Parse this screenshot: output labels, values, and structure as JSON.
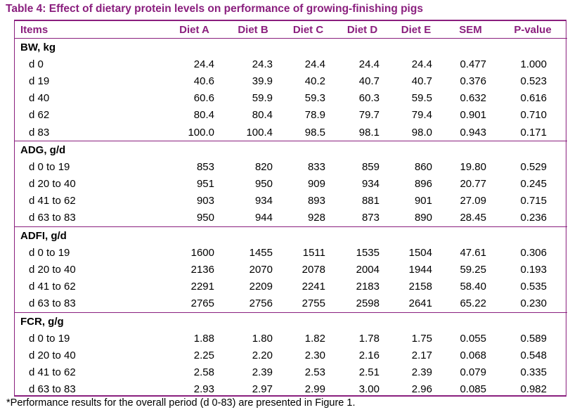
{
  "title": "Table 4:  Effect of dietary protein levels on performance of growing-finishing pigs",
  "columns": [
    "Items",
    "Diet A",
    "Diet B",
    "Diet C",
    "Diet D",
    "Diet E",
    "SEM",
    "P-value"
  ],
  "groups": [
    {
      "name": "BW, kg",
      "rows": [
        {
          "label": "d 0",
          "values": [
            "24.4",
            "24.3",
            "24.4",
            "24.4",
            "24.4",
            "0.477",
            "1.000"
          ]
        },
        {
          "label": "d 19",
          "values": [
            "40.6",
            "39.9",
            "40.2",
            "40.7",
            "40.7",
            "0.376",
            "0.523"
          ]
        },
        {
          "label": "d 40",
          "values": [
            "60.6",
            "59.9",
            "59.3",
            "60.3",
            "59.5",
            "0.632",
            "0.616"
          ]
        },
        {
          "label": "d 62",
          "values": [
            "80.4",
            "80.4",
            "78.9",
            "79.7",
            "79.4",
            "0.901",
            "0.710"
          ]
        },
        {
          "label": "d 83",
          "values": [
            "100.0",
            "100.4",
            "98.5",
            "98.1",
            "98.0",
            "0.943",
            "0.171"
          ]
        }
      ]
    },
    {
      "name": "ADG, g/d",
      "rows": [
        {
          "label": "d 0 to 19",
          "values": [
            "853",
            "820",
            "833",
            "859",
            "860",
            "19.80",
            "0.529"
          ]
        },
        {
          "label": "d 20 to 40",
          "values": [
            "951",
            "950",
            "909",
            "934",
            "896",
            "20.77",
            "0.245"
          ]
        },
        {
          "label": "d 41 to 62",
          "values": [
            "903",
            "934",
            "893",
            "881",
            "901",
            "27.09",
            "0.715"
          ]
        },
        {
          "label": "d 63 to 83",
          "values": [
            "950",
            "944",
            "928",
            "873",
            "890",
            "28.45",
            "0.236"
          ]
        }
      ]
    },
    {
      "name": "ADFI, g/d",
      "rows": [
        {
          "label": "d 0 to 19",
          "values": [
            "1600",
            "1455",
            "1511",
            "1535",
            "1504",
            "47.61",
            "0.306"
          ]
        },
        {
          "label": "d 20 to 40",
          "values": [
            "2136",
            "2070",
            "2078",
            "2004",
            "1944",
            "59.25",
            "0.193"
          ]
        },
        {
          "label": "d 41 to 62",
          "values": [
            "2291",
            "2209",
            "2241",
            "2183",
            "2158",
            "58.40",
            "0.535"
          ]
        },
        {
          "label": "d 63 to 83",
          "values": [
            "2765",
            "2756",
            "2755",
            "2598",
            "2641",
            "65.22",
            "0.230"
          ]
        }
      ]
    },
    {
      "name": "FCR, g/g",
      "rows": [
        {
          "label": "d 0 to 19",
          "values": [
            "1.88",
            "1.80",
            "1.82",
            "1.78",
            "1.75",
            "0.055",
            "0.589"
          ]
        },
        {
          "label": "d 20 to 40",
          "values": [
            "2.25",
            "2.20",
            "2.30",
            "2.16",
            "2.17",
            "0.068",
            "0.548"
          ]
        },
        {
          "label": "d 41 to 62",
          "values": [
            "2.58",
            "2.39",
            "2.53",
            "2.51",
            "2.39",
            "0.079",
            "0.335"
          ]
        },
        {
          "label": "d 63 to 83",
          "values": [
            "2.93",
            "2.97",
            "2.99",
            "3.00",
            "2.96",
            "0.085",
            "0.982"
          ]
        }
      ]
    }
  ],
  "footnote": "*Performance results for the overall period (d 0-83) are presented in Figure 1."
}
